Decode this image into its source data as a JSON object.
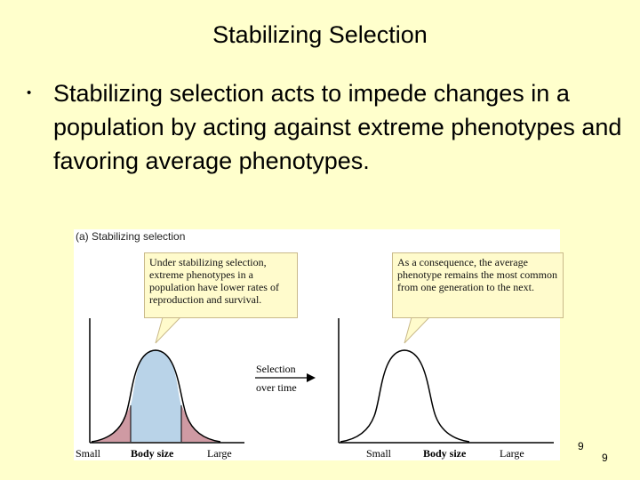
{
  "slide": {
    "title": "Stabilizing Selection",
    "bullet_symbol": "•",
    "bullet_text": "Stabilizing selection acts to impede changes in a population by acting against extreme phenotypes and favoring average phenotypes."
  },
  "figure": {
    "label": "(a) Stabilizing selection",
    "callout_left": "Under stabilizing selection, extreme phenotypes in a population have lower rates of reproduction and survival.",
    "callout_right": "As a consequence, the average phenotype remains the most common from one generation to the next.",
    "selection_line1": "Selection",
    "selection_line2": "over time",
    "left_axis": {
      "small": "Small",
      "label": "Body size",
      "large": "Large"
    },
    "right_axis": {
      "small": "Small",
      "label": "Body size",
      "large": "Large"
    },
    "colors": {
      "center": "#b9d3e8",
      "tails": "#cf9aa3",
      "curve": "#000000"
    }
  },
  "page_numbers": {
    "inner": "9",
    "outer": "9"
  }
}
